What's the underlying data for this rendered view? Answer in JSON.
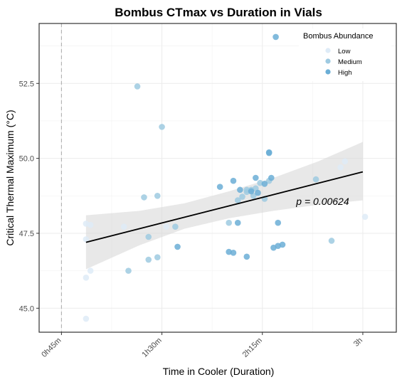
{
  "chart_data": {
    "type": "scatter",
    "title": "Bombus CTmax vs Duration in Vials",
    "xlabel": "Time in Cooler (Duration)",
    "ylabel": "Critical Thermal Maximum (°C)",
    "xlim_minutes": [
      35,
      195
    ],
    "ylim": [
      44.2,
      54.5
    ],
    "x_ticks": [
      {
        "minutes": 45,
        "label": "0h45m"
      },
      {
        "minutes": 90,
        "label": "1h30m"
      },
      {
        "minutes": 135,
        "label": "2h15m"
      },
      {
        "minutes": 180,
        "label": "3h"
      }
    ],
    "y_ticks": [
      {
        "value": 45,
        "label": "45.0"
      },
      {
        "value": 47.5,
        "label": "47.5"
      },
      {
        "value": 50,
        "label": "50.0"
      },
      {
        "value": 52.5,
        "label": "52.5"
      }
    ],
    "reference_line_minutes": 45,
    "grid": true,
    "legend": {
      "title": "Bombus Abundance",
      "position": "top-right",
      "entries": [
        {
          "label": "Low",
          "color": "#deebf7"
        },
        {
          "label": "Medium",
          "color": "#9ecae1"
        },
        {
          "label": "High",
          "color": "#6baed6"
        }
      ]
    },
    "trend": {
      "start": [
        56,
        47.2
      ],
      "end": [
        180,
        49.55
      ]
    },
    "confidence_band": {
      "upper": [
        [
          56,
          48.1
        ],
        [
          80,
          48.25
        ],
        [
          100,
          48.5
        ],
        [
          120,
          48.9
        ],
        [
          140,
          49.35
        ],
        [
          160,
          49.9
        ],
        [
          180,
          50.55
        ]
      ],
      "lower": [
        [
          56,
          46.3
        ],
        [
          80,
          47.1
        ],
        [
          100,
          47.65
        ],
        [
          120,
          48.0
        ],
        [
          140,
          48.25
        ],
        [
          160,
          48.45
        ],
        [
          180,
          48.6
        ]
      ]
    },
    "annotation": "p = 0.00624",
    "annotation_pos": [
      162,
      48.45
    ],
    "series": [
      {
        "name": "Low",
        "color": "#deebf7",
        "points": [
          [
            56,
            47.82
          ],
          [
            58,
            47.78
          ],
          [
            56,
            47.3
          ],
          [
            56,
            46.02
          ],
          [
            58,
            46.25
          ],
          [
            56,
            44.65
          ],
          [
            73,
            47.72
          ],
          [
            92,
            47.72
          ],
          [
            170,
            49.7
          ],
          [
            172,
            49.9
          ],
          [
            181,
            48.05
          ]
        ]
      },
      {
        "name": "Medium",
        "color": "#9ecae1",
        "points": [
          [
            79,
            52.4
          ],
          [
            90,
            51.05
          ],
          [
            82,
            48.7
          ],
          [
            88,
            48.75
          ],
          [
            84,
            47.38
          ],
          [
            75,
            46.25
          ],
          [
            84,
            46.62
          ],
          [
            88,
            46.7
          ],
          [
            96,
            47.72
          ],
          [
            120,
            47.85
          ],
          [
            124,
            48.6
          ],
          [
            126,
            48.72
          ],
          [
            128,
            48.88
          ],
          [
            130,
            48.95
          ],
          [
            134,
            49.18
          ],
          [
            138,
            49.25
          ],
          [
            136,
            48.65
          ],
          [
            131,
            48.75
          ],
          [
            128,
            48.95
          ],
          [
            166,
            47.25
          ],
          [
            159,
            49.3
          ],
          [
            132,
            49.0
          ]
        ]
      },
      {
        "name": "High",
        "color": "#6baed6",
        "points": [
          [
            141,
            54.05
          ],
          [
            138,
            50.2
          ],
          [
            138,
            50.18
          ],
          [
            116,
            49.05
          ],
          [
            122,
            49.25
          ],
          [
            125,
            48.95
          ],
          [
            132,
            49.35
          ],
          [
            139,
            49.35
          ],
          [
            133,
            48.85
          ],
          [
            124,
            47.85
          ],
          [
            142,
            47.85
          ],
          [
            142,
            47.08
          ],
          [
            144,
            47.12
          ],
          [
            140,
            47.02
          ],
          [
            120,
            46.88
          ],
          [
            122,
            46.85
          ],
          [
            128,
            46.72
          ],
          [
            97,
            47.05
          ],
          [
            130,
            48.9
          ],
          [
            136,
            49.15
          ]
        ]
      }
    ]
  }
}
